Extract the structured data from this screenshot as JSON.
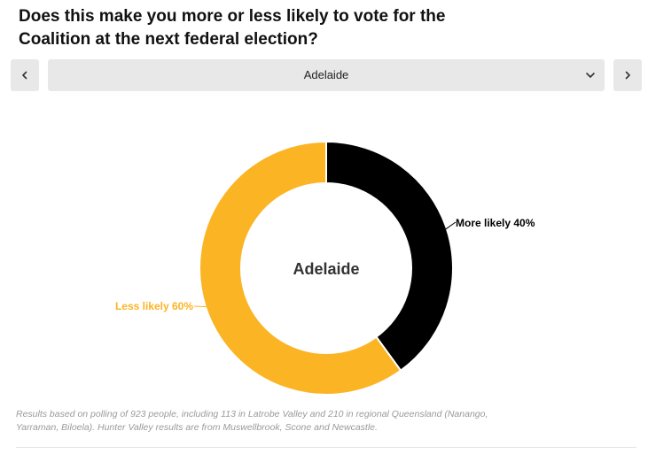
{
  "title": "Does this make you more or less likely to vote for the Coalition at the next federal election?",
  "selector": {
    "selected": "Adelaide",
    "prev_icon": "chevron-left-icon",
    "next_icon": "chevron-right-icon",
    "dropdown_icon": "chevron-down-icon"
  },
  "chart_data": {
    "type": "pie",
    "style": "donut",
    "center_label": "Adelaide",
    "slices": [
      {
        "label": "More likely 40%",
        "value": 40,
        "color": "#000000",
        "label_color": "#000000"
      },
      {
        "label": "Less likely 60%",
        "value": 60,
        "color": "#fbb424",
        "label_color": "#fbb424"
      }
    ],
    "legend": "none"
  },
  "footnote": "Results based on polling of 923 people, including 113 in Latrobe Valley and 210 in regional Queensland (Nanango, Yarraman, Biloela). Hunter Valley results are from Muswellbrook, Scone and Newcastle.",
  "colors": {
    "button_bg": "#e8e8e8",
    "more_likely": "#000000",
    "less_likely": "#fbb424",
    "footnote": "#9a9a9a"
  }
}
